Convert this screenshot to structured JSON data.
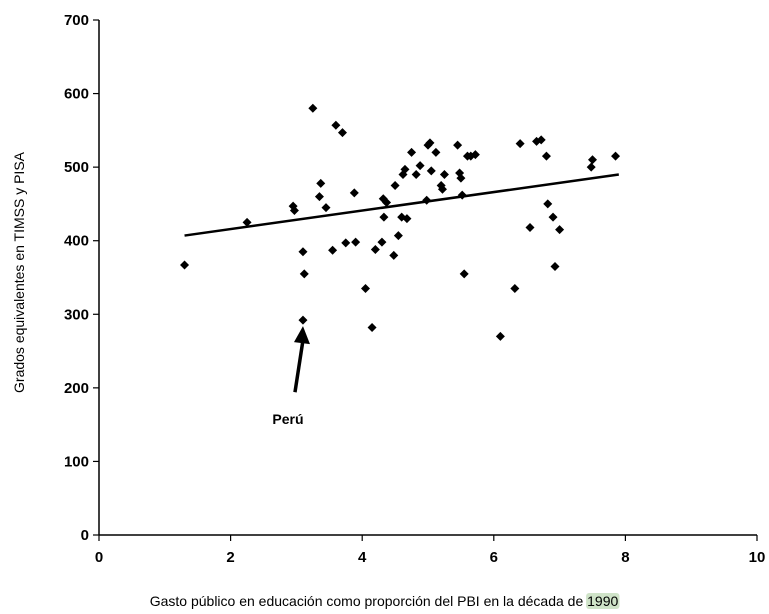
{
  "chart_data": {
    "type": "scatter",
    "title": "",
    "xlabel": "Gasto público en educación como proporción del PBI en la década de 1990",
    "xlabel_prefix": "Gasto público en educación como proporción del PBI en la década de ",
    "xlabel_highlight": "1990",
    "ylabel": "Grados equivalentes en TIMSS y PISA",
    "xlim": [
      0,
      10
    ],
    "ylim": [
      0,
      700
    ],
    "x_ticks": [
      0,
      2,
      4,
      6,
      8,
      10
    ],
    "y_ticks": [
      0,
      100,
      200,
      300,
      400,
      500,
      600,
      700
    ],
    "x_tick_labels": [
      "0",
      "2",
      "4",
      "6",
      "8",
      "10"
    ],
    "y_tick_labels": [
      "0",
      "100",
      "200",
      "300",
      "400",
      "500",
      "600",
      "700"
    ],
    "grid": false,
    "marker_color": "#000000",
    "line_color": "#000000",
    "highlight_color": "#cfe3c8",
    "trendline": {
      "x": [
        1.3,
        7.9
      ],
      "y": [
        407,
        490
      ]
    },
    "annotations": [
      {
        "text": "Perú",
        "point": [
          3.1,
          292
        ]
      }
    ],
    "points": [
      [
        1.3,
        367
      ],
      [
        2.25,
        425
      ],
      [
        2.95,
        447
      ],
      [
        2.97,
        441
      ],
      [
        3.1,
        385
      ],
      [
        3.12,
        355
      ],
      [
        3.1,
        292
      ],
      [
        3.25,
        580
      ],
      [
        3.35,
        460
      ],
      [
        3.37,
        478
      ],
      [
        3.45,
        445
      ],
      [
        3.55,
        387
      ],
      [
        3.6,
        557
      ],
      [
        3.7,
        547
      ],
      [
        3.75,
        397
      ],
      [
        3.88,
        465
      ],
      [
        3.9,
        398
      ],
      [
        4.05,
        335
      ],
      [
        4.15,
        282
      ],
      [
        4.2,
        388
      ],
      [
        4.3,
        398
      ],
      [
        4.32,
        457
      ],
      [
        4.33,
        432
      ],
      [
        4.37,
        452
      ],
      [
        4.48,
        380
      ],
      [
        4.5,
        475
      ],
      [
        4.55,
        407
      ],
      [
        4.6,
        432
      ],
      [
        4.62,
        490
      ],
      [
        4.65,
        497
      ],
      [
        4.68,
        430
      ],
      [
        4.75,
        520
      ],
      [
        4.82,
        490
      ],
      [
        4.88,
        502
      ],
      [
        4.98,
        455
      ],
      [
        5.0,
        530
      ],
      [
        5.03,
        533
      ],
      [
        5.05,
        495
      ],
      [
        5.12,
        520
      ],
      [
        5.2,
        475
      ],
      [
        5.22,
        470
      ],
      [
        5.25,
        490
      ],
      [
        5.45,
        530
      ],
      [
        5.48,
        492
      ],
      [
        5.5,
        485
      ],
      [
        5.52,
        462
      ],
      [
        5.55,
        355
      ],
      [
        5.6,
        515
      ],
      [
        5.65,
        515
      ],
      [
        5.72,
        517
      ],
      [
        6.1,
        270
      ],
      [
        6.32,
        335
      ],
      [
        6.4,
        532
      ],
      [
        6.55,
        418
      ],
      [
        6.65,
        535
      ],
      [
        6.72,
        537
      ],
      [
        6.8,
        515
      ],
      [
        6.82,
        450
      ],
      [
        6.9,
        432
      ],
      [
        6.93,
        365
      ],
      [
        7.0,
        415
      ],
      [
        7.48,
        500
      ],
      [
        7.5,
        510
      ],
      [
        7.85,
        515
      ]
    ]
  }
}
